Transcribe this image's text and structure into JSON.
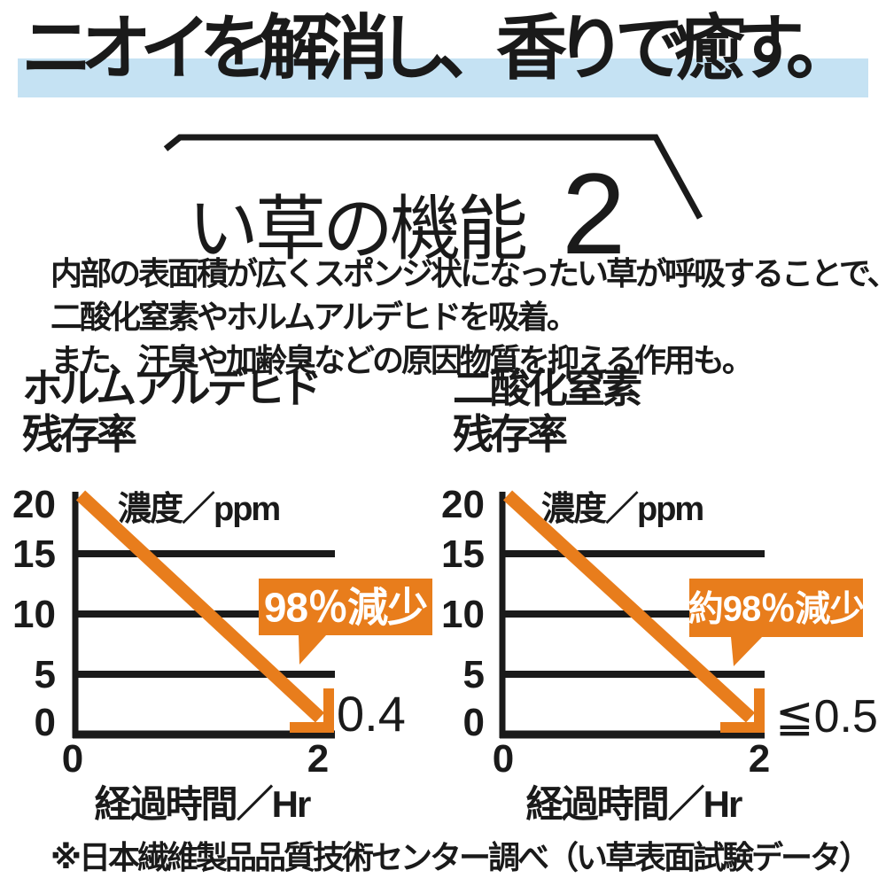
{
  "headline": "ニオイを解消し、香りで癒す。",
  "section": {
    "title": "い草の機能",
    "number": "2"
  },
  "description": {
    "lines": [
      "内部の表面積が広くスポンジ状になったい草が呼吸することで、",
      "二酸化窒素やホルムアルデヒドを吸着。",
      "また、汗臭や加齢臭などの原因物質を抑える作用も。"
    ]
  },
  "footnote": "※日本繊維製品品質技術センター調べ（い草表面試験データ）",
  "colors": {
    "accent_orange": "#E87D1C",
    "highlight_blue": "#C5E2F3",
    "ink": "#1A1A1A",
    "callout_text": "#FFFFFF"
  },
  "chart_data": [
    {
      "type": "line",
      "title": "ホルムアルデヒド残存率",
      "title_lines": [
        "ホルムアルデヒド",
        "残存率"
      ],
      "ylabel": "濃度／ppm",
      "xlabel": "経過時間／Hr",
      "x": [
        0,
        2
      ],
      "values": [
        20,
        0.4
      ],
      "ylim": [
        0,
        20
      ],
      "xlim": [
        0,
        2
      ],
      "yticks": [
        "20",
        "15",
        "10",
        "5",
        "0"
      ],
      "xticks": [
        "0",
        "2"
      ],
      "grid": true,
      "legend": "none",
      "annotation": "98％減少",
      "end_value_label": "0.4"
    },
    {
      "type": "line",
      "title": "二酸化窒素残存率",
      "title_lines": [
        "二酸化窒素",
        "残存率"
      ],
      "ylabel": "濃度／ppm",
      "xlabel": "経過時間／Hr",
      "x": [
        0,
        2
      ],
      "values": [
        20,
        0.5
      ],
      "ylim": [
        0,
        20
      ],
      "xlim": [
        0,
        2
      ],
      "yticks": [
        "20",
        "15",
        "10",
        "5",
        "0"
      ],
      "xticks": [
        "0",
        "2"
      ],
      "grid": true,
      "legend": "none",
      "annotation": "約98％減少",
      "end_value_label": "≦0.5"
    }
  ]
}
